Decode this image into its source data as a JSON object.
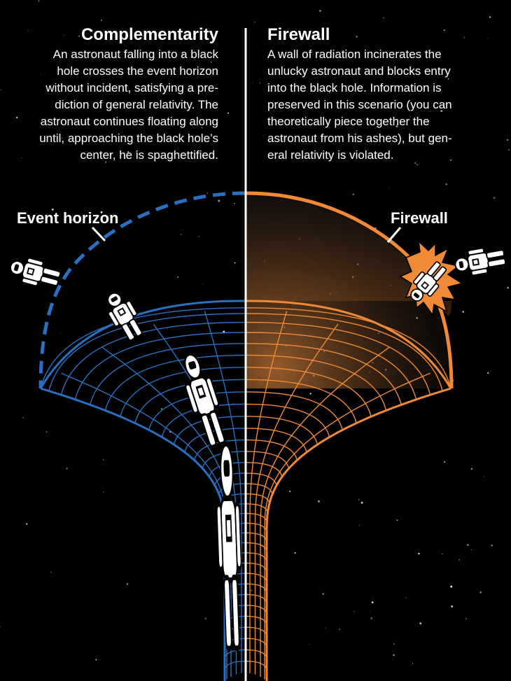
{
  "left_panel": {
    "title": "Complementarity",
    "lines": [
      "An astronaut falling into a black",
      "hole crosses the event horizon",
      "without incident, satisfying a pre-",
      "diction of general relativity.  The",
      "astronaut continues floating along",
      "until, approaching the black hole’s",
      "center, he is spaghettified."
    ],
    "label": "Event horizon"
  },
  "right_panel": {
    "title": "Firewall",
    "lines": [
      "A wall of radiation incinerates the",
      "unlucky astronaut and blocks entry",
      "into the black hole. Information is",
      "preserved in this scenario (you can",
      "theoretically piece together the",
      "astronaut from his ashes), but gen-",
      "eral relativity is violated."
    ],
    "label": "Firewall"
  },
  "colors": {
    "complementarity": "#2a6fc0",
    "firewall": "#f08a36",
    "divider": "#ffffff",
    "background": "#000000"
  },
  "icons": {
    "astronaut": "astronaut-icon",
    "flame": "flame-icon"
  }
}
